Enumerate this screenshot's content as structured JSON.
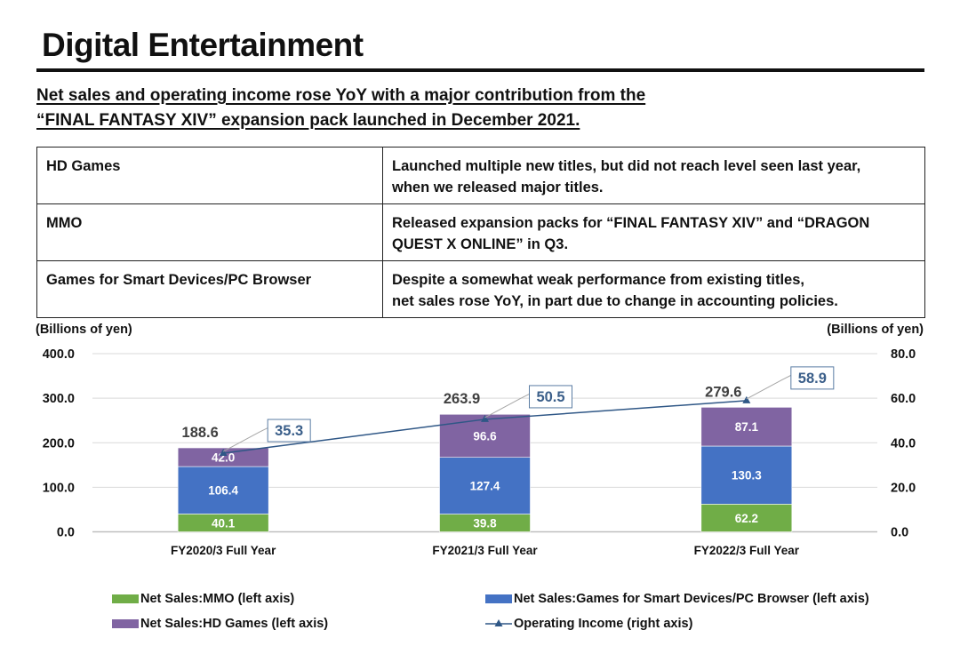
{
  "page": {
    "title": "Digital Entertainment",
    "subtitle_lines": [
      "Net sales and operating income rose YoY with a major contribution from the",
      "“FINAL FANTASY XIV” expansion pack launched in December 2021."
    ]
  },
  "segments_table": [
    {
      "segment": "HD Games",
      "comment_lines": [
        "Launched multiple new titles, but did not reach level seen last year,",
        "when we released major titles."
      ]
    },
    {
      "segment": "MMO",
      "comment_lines": [
        "Released expansion packs for “FINAL FANTASY XIV” and “DRAGON",
        "QUEST X ONLINE” in Q3."
      ]
    },
    {
      "segment": "Games for Smart Devices/PC Browser",
      "comment_lines": [
        "Despite a somewhat weak performance from existing titles,",
        "net sales rose YoY, in part due to change in accounting policies."
      ]
    }
  ],
  "colors": {
    "mmo": "#70ad47",
    "smart": "#4472c4",
    "hd": "#8064a2",
    "line": "#2f5786",
    "callout_text": "#3b5f8a",
    "grid": "#d9d9d9"
  },
  "chart_data": {
    "type": "bar",
    "stacked": true,
    "categories": [
      "FY2020/3 Full Year",
      "FY2021/3 Full Year",
      "FY2022/3 Full Year"
    ],
    "left_axis": {
      "label": "(Billions of yen)",
      "range": [
        0,
        400
      ],
      "ticks": [
        "0.0",
        "100.0",
        "200.0",
        "300.0",
        "400.0"
      ]
    },
    "right_axis": {
      "label": "(Billions of yen)",
      "range": [
        0,
        80
      ],
      "ticks": [
        "0.0",
        "20.0",
        "40.0",
        "60.0",
        "80.0"
      ]
    },
    "series": [
      {
        "name": "Net Sales:MMO (left axis)",
        "key": "mmo",
        "axis": "left",
        "values": [
          40.1,
          39.8,
          62.2
        ],
        "labels": [
          "40.1",
          "39.8",
          "62.2"
        ]
      },
      {
        "name": "Net Sales:Games for Smart Devices/PC Browser (left axis)",
        "key": "smart",
        "axis": "left",
        "values": [
          106.4,
          127.4,
          130.3
        ],
        "labels": [
          "106.4",
          "127.4",
          "130.3"
        ]
      },
      {
        "name": "Net Sales:HD Games (left axis)",
        "key": "hd",
        "axis": "left",
        "values": [
          42.0,
          96.6,
          87.1
        ],
        "labels": [
          "42.0",
          "96.6",
          "87.1"
        ]
      },
      {
        "name": "Operating Income (right axis)",
        "key": "line",
        "type": "line",
        "axis": "right",
        "values": [
          35.3,
          50.5,
          58.9
        ],
        "labels": [
          "35.3",
          "50.5",
          "58.9"
        ]
      }
    ],
    "totals": [
      188.6,
      263.9,
      279.6
    ],
    "total_labels": [
      "188.6",
      "263.9",
      "279.6"
    ],
    "grid": true,
    "legend_position": "bottom"
  }
}
